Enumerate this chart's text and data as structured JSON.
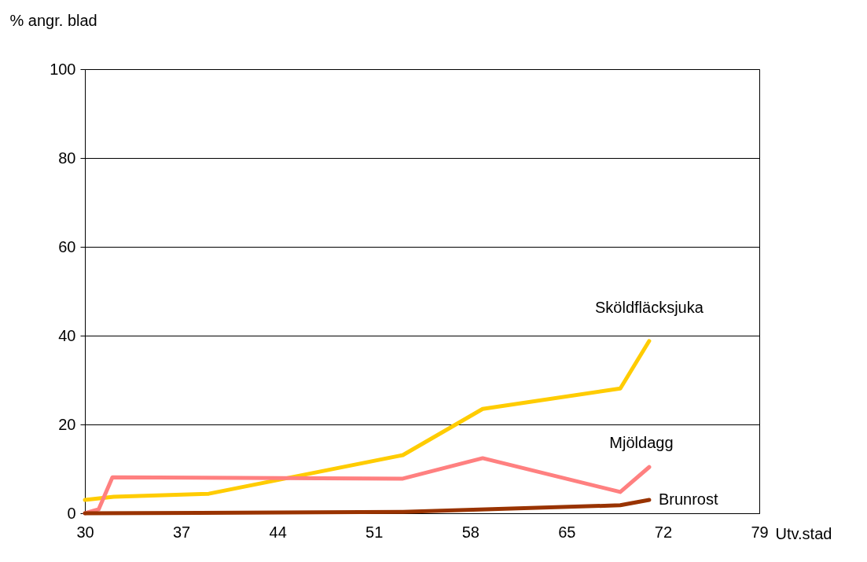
{
  "chart_data": {
    "type": "line",
    "xlabel": "Utv.stad",
    "ylabel": "% angr. blad",
    "xlim": [
      30,
      79
    ],
    "xticks": [
      30,
      37,
      44,
      51,
      58,
      65,
      72,
      79
    ],
    "ylim": [
      0,
      100
    ],
    "yticks": [
      0,
      20,
      40,
      60,
      80,
      100
    ],
    "grid": "y",
    "marker": "none",
    "line_style": "solid",
    "series": [
      {
        "name": "Sköldfläcksjuka",
        "color": "#ffcc00",
        "x": [
          30,
          32.1,
          39,
          53.1,
          58.9,
          68.9,
          71
        ],
        "values": [
          3.0,
          3.7,
          4.4,
          13.1,
          23.5,
          28.1,
          38.8
        ]
      },
      {
        "name": "Mjöldagg",
        "color": "#ff8080",
        "x": [
          30,
          31,
          32,
          53.1,
          58.9,
          68.9,
          71
        ],
        "values": [
          0,
          0.9,
          8.1,
          7.8,
          12.4,
          4.8,
          10.4
        ]
      },
      {
        "name": "Brunrost",
        "color": "#993300",
        "x": [
          30,
          53.1,
          68.9,
          71
        ],
        "values": [
          0,
          0.3,
          1.8,
          3.0
        ]
      }
    ]
  }
}
